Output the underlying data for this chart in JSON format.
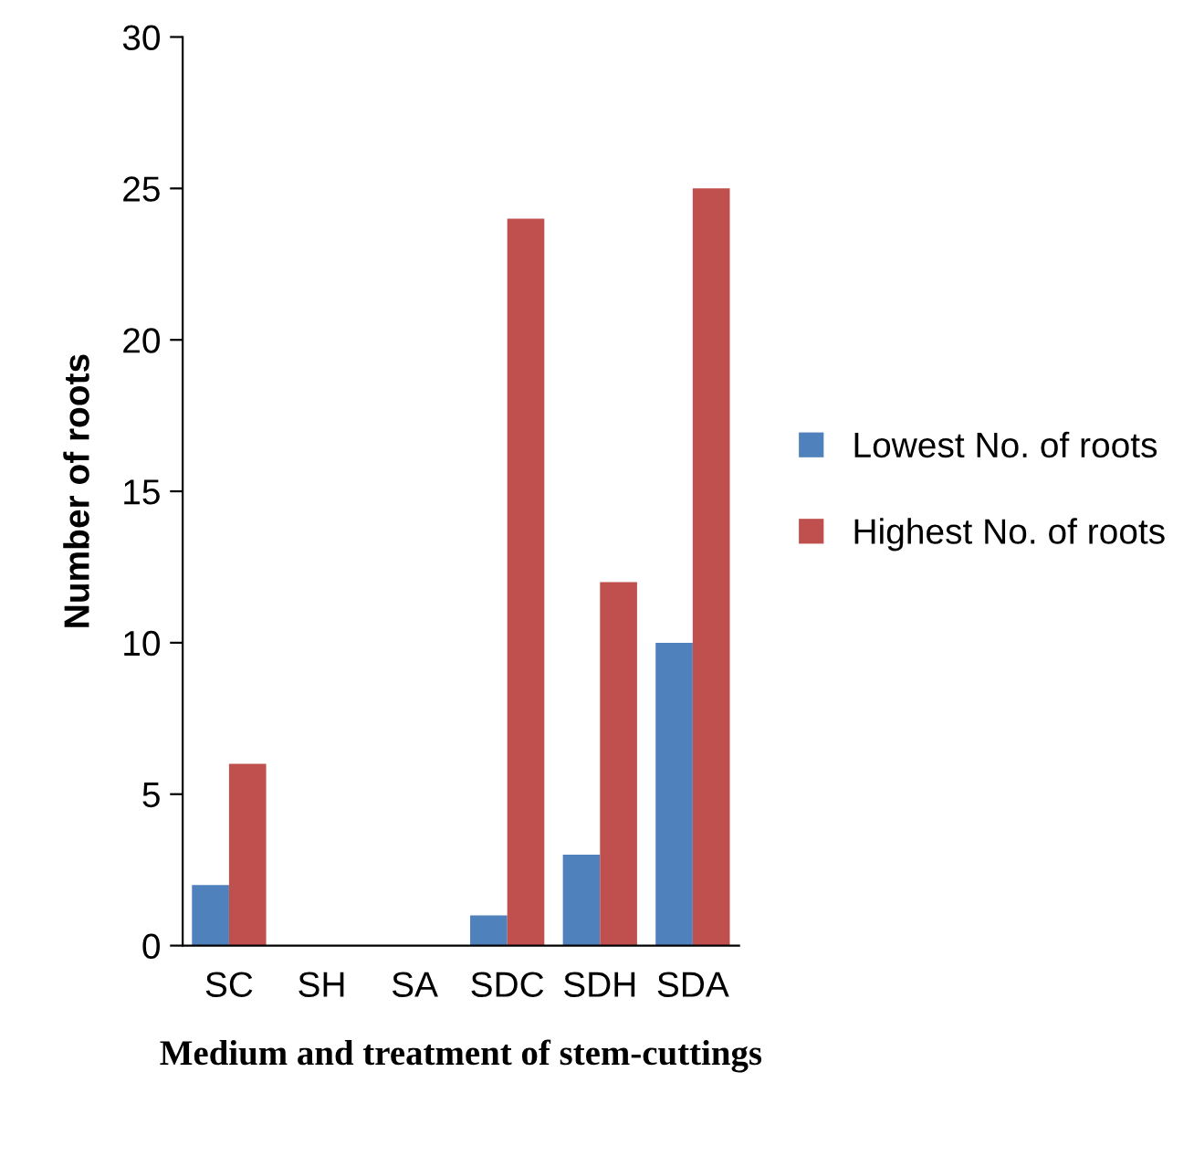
{
  "chart_data": {
    "type": "bar",
    "xlabel": "Medium and treatment of stem-cuttings",
    "ylabel": "Number of roots",
    "categories": [
      "SC",
      "SH",
      "SA",
      "SDC",
      "SDH",
      "SDA"
    ],
    "series": [
      {
        "name": "Lowest No. of roots",
        "color": "#4f81bd",
        "values": [
          2,
          0,
          0,
          1,
          3,
          10
        ]
      },
      {
        "name": "Highest No. of roots",
        "color": "#c0504d",
        "values": [
          6,
          0,
          0,
          24,
          12,
          25
        ]
      }
    ],
    "ylim": [
      0,
      30
    ],
    "yticks": [
      0,
      5,
      10,
      15,
      20,
      25,
      30
    ],
    "grid": false,
    "legend": "right"
  }
}
